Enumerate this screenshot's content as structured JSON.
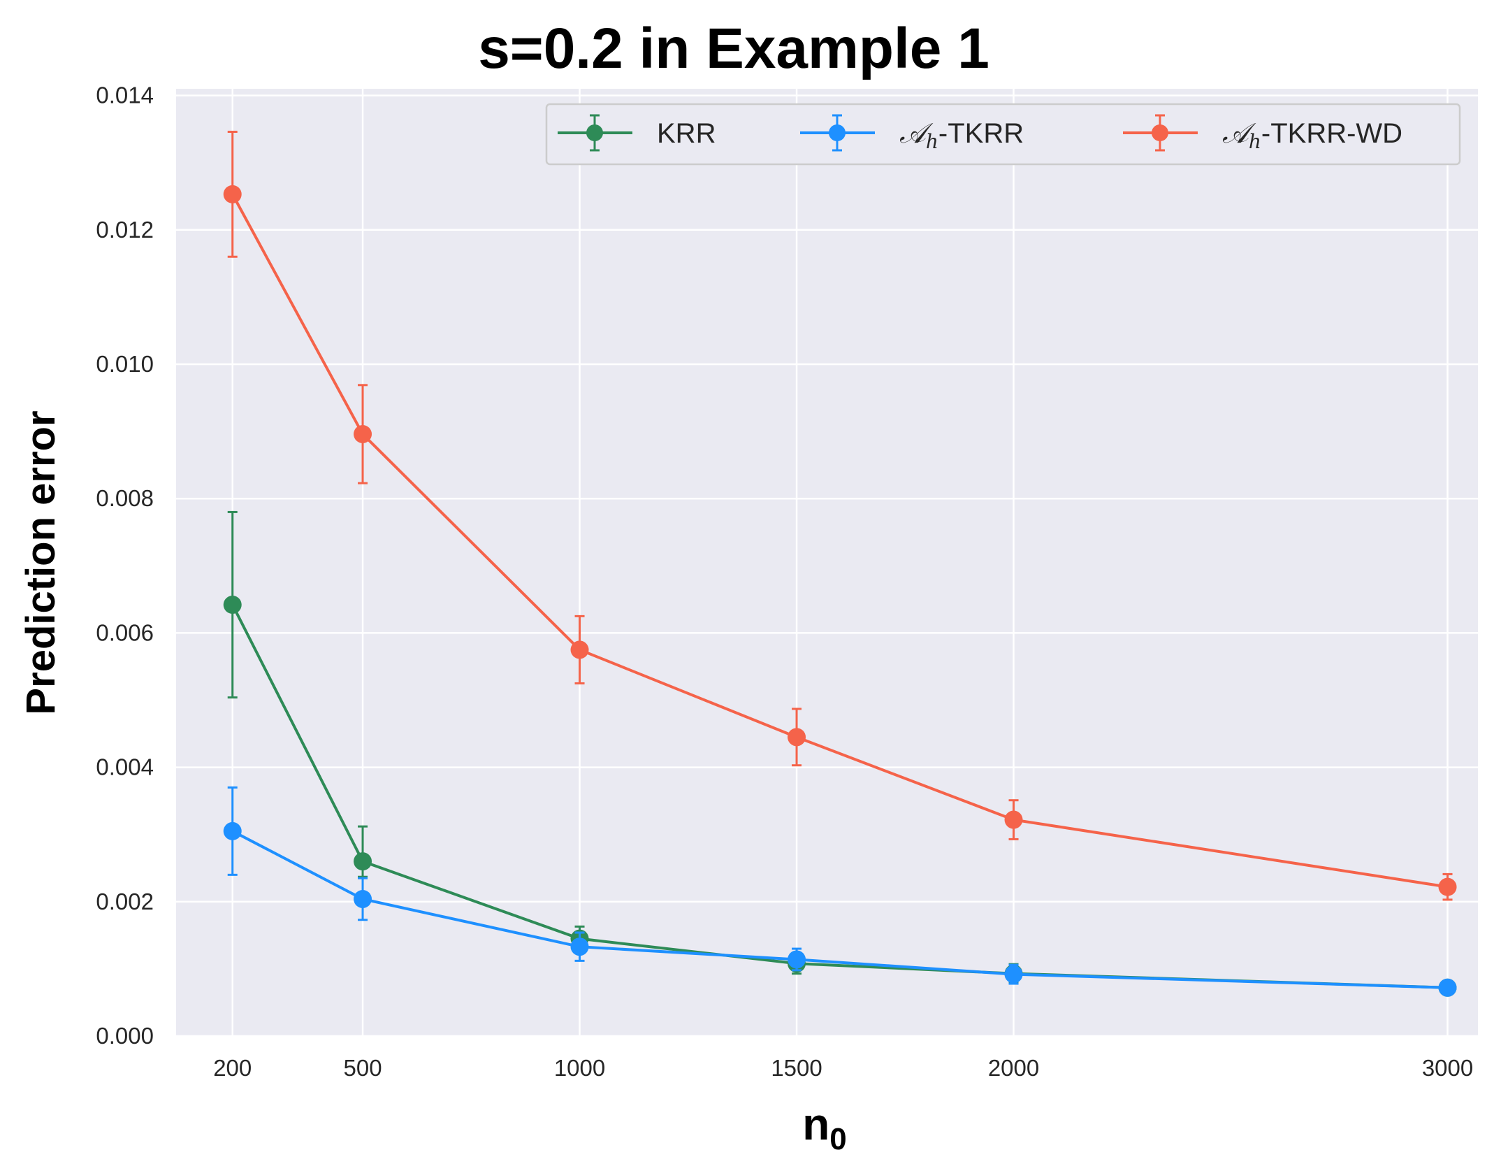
{
  "chart_data": {
    "type": "line",
    "title": "s=0.2 in Example 1",
    "xlabel": "n0",
    "xlabel_base": "n",
    "xlabel_sub": "0",
    "ylabel": "Prediction error",
    "x": [
      200,
      500,
      1000,
      1500,
      2000,
      3000
    ],
    "x_ticks": [
      "200",
      "500",
      "1000",
      "1500",
      "2000",
      "3000"
    ],
    "y_ticks": [
      "0.000",
      "0.002",
      "0.004",
      "0.006",
      "0.008",
      "0.010",
      "0.012",
      "0.014"
    ],
    "xlim": [
      70,
      3070
    ],
    "ylim": [
      0,
      0.0141
    ],
    "grid": true,
    "legend_position": "top-right",
    "series": [
      {
        "name": "KRR",
        "color": "#2e8b57",
        "values": [
          0.00642,
          0.0026,
          0.00145,
          0.00108,
          0.00093,
          0.00072
        ],
        "err_low": [
          0.00504,
          0.00237,
          0.00128,
          0.00093,
          0.00079,
          0.00066
        ],
        "err_high": [
          0.0078,
          0.00312,
          0.00163,
          0.00123,
          0.00107,
          0.00078
        ]
      },
      {
        "name": "Ah-TKRR",
        "legend_math": "𝒜",
        "legend_sub": "h",
        "legend_rest": "-TKRR",
        "color": "#1e90ff",
        "values": [
          0.00305,
          0.00204,
          0.00133,
          0.00114,
          0.00092,
          0.00072
        ],
        "err_low": [
          0.0024,
          0.00173,
          0.00112,
          0.00098,
          0.00078,
          0.00066
        ],
        "err_high": [
          0.0037,
          0.00235,
          0.00154,
          0.0013,
          0.00106,
          0.00078
        ]
      },
      {
        "name": "Ah-TKRR-WD",
        "legend_math": "𝒜",
        "legend_sub": "h",
        "legend_rest": "-TKRR-WD",
        "color": "#f5634a",
        "values": [
          0.01253,
          0.00896,
          0.00575,
          0.00445,
          0.00322,
          0.00222
        ],
        "err_low": [
          0.0116,
          0.00823,
          0.00525,
          0.00403,
          0.00293,
          0.00203
        ],
        "err_high": [
          0.01346,
          0.00969,
          0.00625,
          0.00487,
          0.00351,
          0.00241
        ]
      }
    ]
  }
}
